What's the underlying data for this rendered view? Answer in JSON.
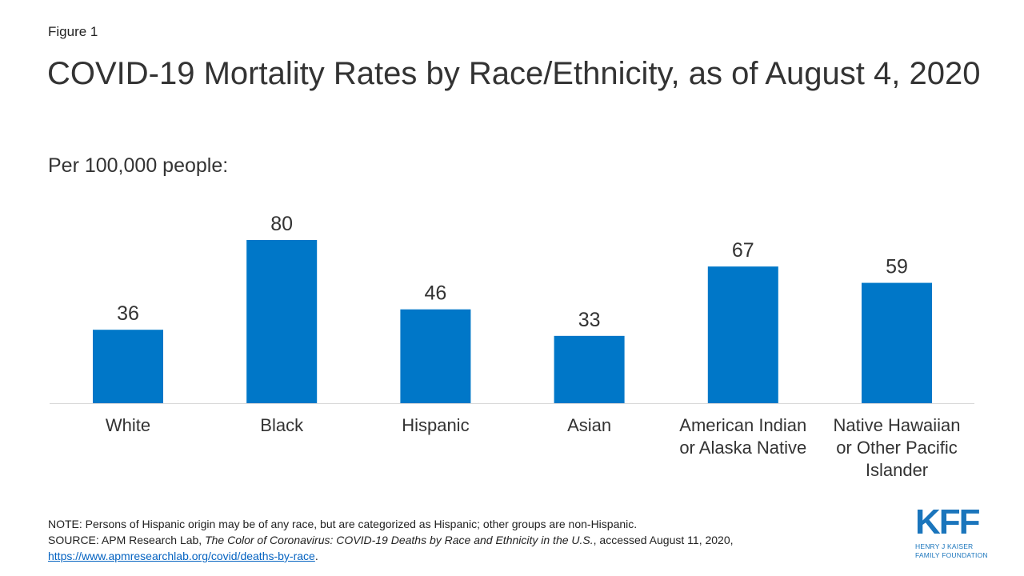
{
  "figure_label": "Figure 1",
  "colors": {
    "bar": "#0077c8",
    "axis": "#d9d9d9",
    "link": "#0563c1",
    "logo": "#1a75bc"
  },
  "chart_data": {
    "type": "bar",
    "title": "COVID-19 Mortality Rates by Race/Ethnicity, as of August 4, 2020",
    "subtitle": "Per 100,000 people:",
    "categories": [
      "White",
      "Black",
      "Hispanic",
      "Asian",
      "American Indian or Alaska Native",
      "Native Hawaiian or Other Pacific Islander"
    ],
    "category_lines": [
      [
        "White"
      ],
      [
        "Black"
      ],
      [
        "Hispanic"
      ],
      [
        "Asian"
      ],
      [
        "American Indian",
        "or Alaska Native"
      ],
      [
        "Native Hawaiian",
        "or Other Pacific",
        "Islander"
      ]
    ],
    "values": [
      36,
      80,
      46,
      33,
      67,
      59
    ],
    "data_labels": true,
    "grid": false,
    "ylim": [
      0,
      80
    ]
  },
  "note": "NOTE: Persons of Hispanic origin may be of any race, but are categorized as Hispanic; other groups are non-Hispanic.",
  "source": {
    "prefix": "SOURCE: APM Research Lab, ",
    "title": "The Color of Coronavirus: COVID-19 Deaths by Race and Ethnicity in the U.S.",
    "suffix": ", accessed August 11, 2020,",
    "link": "https://www.apmresearchlab.org/covid/deaths-by-race",
    "end": "."
  },
  "logo": {
    "mark": "KFF",
    "line1": "HENRY J KAISER",
    "line2": "FAMILY FOUNDATION"
  }
}
